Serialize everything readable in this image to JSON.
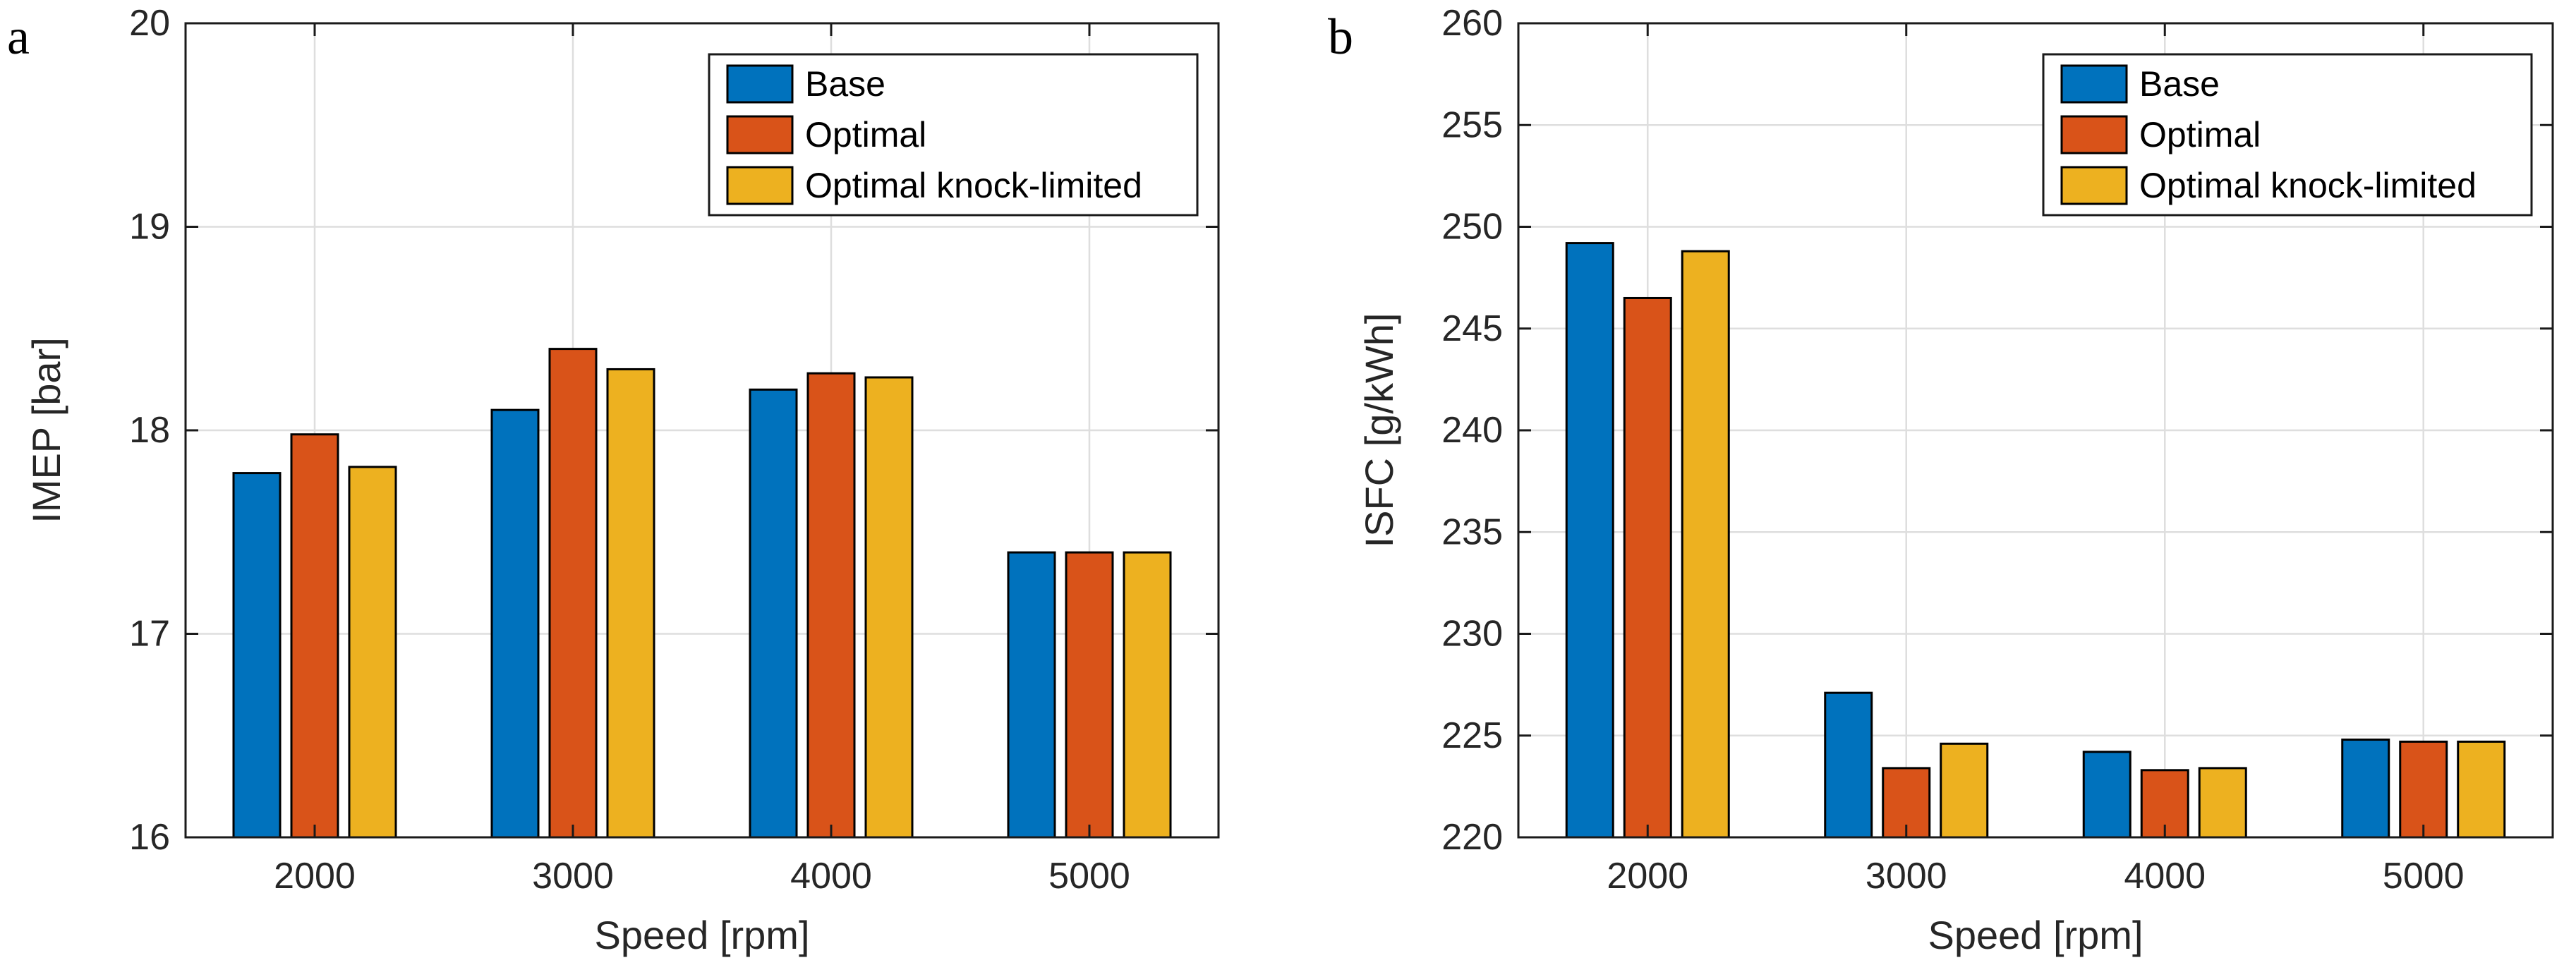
{
  "figure": {
    "background": "#ffffff",
    "panel_letters": [
      "a",
      "b"
    ]
  },
  "styles": {
    "axis_color": "#1a1a1a",
    "tick_label_color": "#262626",
    "axis_label_color": "#262626",
    "grid_color": "#dedede",
    "bar_edge_color": "#000000",
    "legend_border_color": "#1a1a1a",
    "legend_background": "#ffffff",
    "legend_text_color": "#000000",
    "series_colors": [
      "#0072BD",
      "#D95319",
      "#EDB120"
    ]
  },
  "chart_data": [
    {
      "type": "bar",
      "panel_label": "a",
      "title": "",
      "categories": [
        "2000",
        "3000",
        "4000",
        "5000"
      ],
      "series": [
        {
          "name": "Base",
          "color": "#0072BD",
          "values": [
            17.79,
            18.1,
            18.2,
            17.4
          ]
        },
        {
          "name": "Optimal",
          "color": "#D95319",
          "values": [
            17.98,
            18.4,
            18.28,
            17.4
          ]
        },
        {
          "name": "Optimal knock-limited",
          "color": "#EDB120",
          "values": [
            17.82,
            18.3,
            18.26,
            17.4
          ]
        }
      ],
      "xlabel": "Speed [rpm]",
      "ylabel": "IMEP [bar]",
      "ylim": [
        16,
        20
      ],
      "ytick_step": 1,
      "grid": true,
      "legend_position": "top-right"
    },
    {
      "type": "bar",
      "panel_label": "b",
      "title": "",
      "categories": [
        "2000",
        "3000",
        "4000",
        "5000"
      ],
      "series": [
        {
          "name": "Base",
          "color": "#0072BD",
          "values": [
            249.2,
            227.1,
            224.2,
            224.8
          ]
        },
        {
          "name": "Optimal",
          "color": "#D95319",
          "values": [
            246.5,
            223.4,
            223.3,
            224.7
          ]
        },
        {
          "name": "Optimal knock-limited",
          "color": "#EDB120",
          "values": [
            248.8,
            224.6,
            223.4,
            224.7
          ]
        }
      ],
      "xlabel": "Speed [rpm]",
      "ylabel": "ISFC [g/kWh]",
      "ylim": [
        220,
        260
      ],
      "ytick_step": 5,
      "grid": true,
      "legend_position": "top-right"
    }
  ]
}
